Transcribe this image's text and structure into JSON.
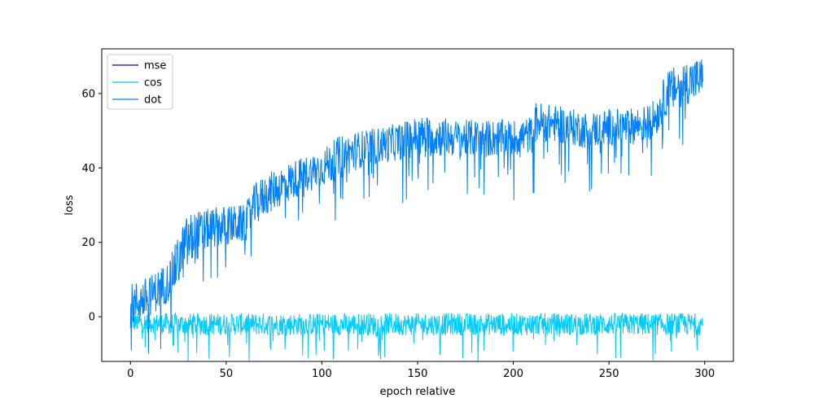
{
  "chart_data": {
    "type": "line",
    "xlabel": "epoch relative",
    "ylabel": "loss",
    "xlim": [
      -15,
      315
    ],
    "ylim": [
      -12,
      72
    ],
    "xticks": [
      0,
      50,
      100,
      150,
      200,
      250,
      300
    ],
    "yticks": [
      0,
      20,
      40,
      60
    ],
    "legend_position": "top-left",
    "grid": false,
    "series": [
      {
        "name": "mse",
        "color": "#0000cd",
        "note_visible": "hidden underneath dot series",
        "x": [
          0,
          300
        ],
        "y": [
          0,
          0
        ],
        "band_low": [],
        "band_high": []
      },
      {
        "name": "cos",
        "color": "#00ccff",
        "x": [
          0,
          25,
          50,
          75,
          100,
          125,
          150,
          175,
          200,
          225,
          250,
          275,
          299
        ],
        "y": [
          0.5,
          0.5,
          0.5,
          0.5,
          0.5,
          0.5,
          0.5,
          0.5,
          0.5,
          0.5,
          0.5,
          0.5,
          0.5
        ],
        "band_low": [
          -4,
          -5,
          -5,
          -5,
          -5,
          -5,
          -5,
          -5,
          -5,
          -5,
          -5,
          -5,
          -5
        ],
        "band_high": [
          1,
          1,
          1,
          1,
          1,
          1,
          1,
          1,
          1,
          1,
          1,
          1,
          1
        ],
        "spike_min": -12
      },
      {
        "name": "dot",
        "color": "#0080ff",
        "x": [
          0,
          10,
          20,
          25,
          30,
          40,
          50,
          60,
          65,
          70,
          80,
          90,
          100,
          110,
          120,
          130,
          140,
          150,
          160,
          170,
          180,
          190,
          200,
          210,
          212,
          220,
          230,
          240,
          250,
          260,
          270,
          275,
          280,
          290,
          299
        ],
        "y": [
          4,
          6,
          10,
          14,
          20,
          24,
          25,
          25,
          30,
          32,
          36,
          38,
          40,
          43,
          45,
          46,
          47,
          48,
          48,
          48,
          48,
          48,
          48,
          49,
          52,
          52,
          51,
          50,
          51,
          51,
          52,
          54,
          59,
          62,
          63
        ],
        "band_low": [
          -3,
          0,
          4,
          8,
          12,
          18,
          19,
          20,
          24,
          27,
          30,
          33,
          35,
          37,
          40,
          41,
          42,
          43,
          43,
          43,
          43,
          43,
          43,
          44,
          47,
          47,
          46,
          45,
          46,
          46,
          47,
          49,
          54,
          57,
          58
        ],
        "band_high": [
          9,
          11,
          15,
          22,
          28,
          29,
          30,
          30,
          36,
          38,
          41,
          43,
          45,
          49,
          50,
          51,
          52,
          54,
          54,
          53,
          53,
          53,
          53,
          54,
          58,
          57,
          56,
          55,
          56,
          56,
          57,
          59,
          66,
          69,
          70
        ],
        "spike_min": 18
      }
    ]
  }
}
